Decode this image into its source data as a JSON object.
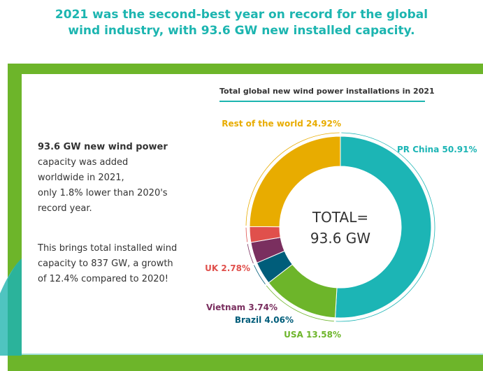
{
  "headline": [
    "2021 was the second-best year on record for the global",
    "wind industry, with 93.6 GW new installed capacity."
  ],
  "text_blocks": [
    [
      "93.6 GW new wind power",
      "capacity was added",
      "worldwide in 2021,",
      "only 1.8% lower than 2020's",
      "record year."
    ],
    [
      "This brings total installed wind",
      "capacity to 837 GW, a growth",
      "of 12.4% compared to 2020!"
    ]
  ],
  "chart_data": {
    "type": "pie",
    "donut": true,
    "title": "Total global new wind power installations in 2021",
    "center_label": [
      "TOTAL=",
      "93.6 GW"
    ],
    "categories": [
      "PR China",
      "USA",
      "Brazil",
      "Vietnam",
      "UK",
      "Rest of the world"
    ],
    "values": [
      50.91,
      13.58,
      4.06,
      3.74,
      2.78,
      24.92
    ],
    "labels": [
      "PR China 50.91%",
      "USA 13.58%",
      "Brazil 4.06%",
      "Vietnam 3.74%",
      "UK 2.78%",
      "Rest of the world 24.92%"
    ],
    "colors": [
      "#1cb5b5",
      "#6db52a",
      "#005d7a",
      "#7a2f5f",
      "#e0504c",
      "#e8ac00"
    ],
    "unit": "%"
  }
}
